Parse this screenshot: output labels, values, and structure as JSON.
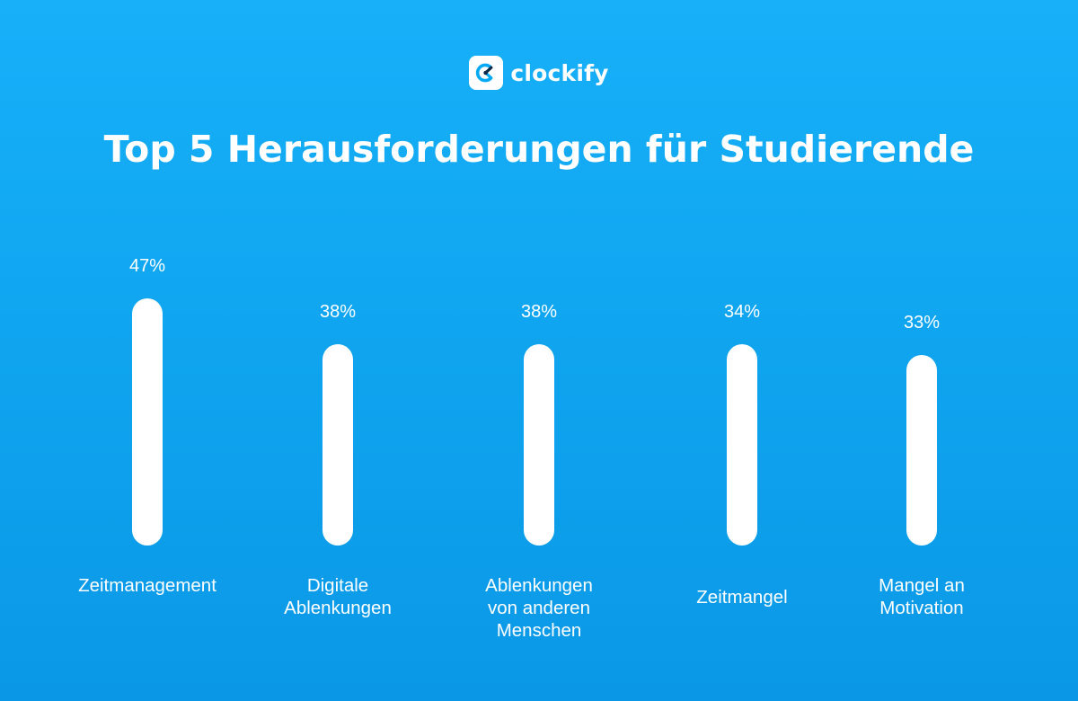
{
  "brand": {
    "name": "clockify",
    "icon": "clockify-logo-icon"
  },
  "colors": {
    "background": "#11a6f1",
    "bar": "#ffffff",
    "text": "#ffffff"
  },
  "chart_data": {
    "type": "bar",
    "title": "Top 5 Herausforderungen für Studierende",
    "categories": [
      "Zeitmanagement",
      "Digitale\nAblenkungen",
      "Ablenkungen\nvon anderen\nMenschen",
      "Zeitmangel",
      "Mangel an\nMotivation"
    ],
    "values": [
      47,
      38,
      38,
      34,
      33
    ],
    "value_labels": [
      "47%",
      "38%",
      "38%",
      "34%",
      "33%"
    ],
    "unit": "%",
    "ylim": [
      0,
      47
    ],
    "grid": false,
    "legend": "none"
  }
}
